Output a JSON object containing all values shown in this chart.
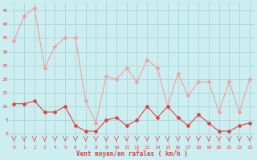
{
  "x": [
    0,
    1,
    2,
    3,
    4,
    5,
    6,
    7,
    8,
    9,
    10,
    11,
    12,
    13,
    14,
    15,
    16,
    17,
    18,
    19,
    20,
    21,
    22,
    23
  ],
  "vent_moyen": [
    11,
    11,
    12,
    8,
    8,
    10,
    3,
    1,
    1,
    5,
    6,
    3,
    5,
    10,
    6,
    10,
    6,
    3,
    7,
    4,
    1,
    1,
    3,
    4
  ],
  "rafales": [
    34,
    43,
    46,
    24,
    32,
    35,
    35,
    12,
    4,
    21,
    20,
    24,
    19,
    27,
    24,
    10,
    22,
    14,
    19,
    19,
    8,
    19,
    8,
    20
  ],
  "bg_color": "#cceef0",
  "grid_color": "#aad4d8",
  "line_color_moyen": "#dd4444",
  "line_color_rafales": "#f0a0a0",
  "xlabel": "Vent moyen/en rafales ( km/h )",
  "ylabel_ticks": [
    0,
    5,
    10,
    15,
    20,
    25,
    30,
    35,
    40,
    45
  ],
  "xlim": [
    -0.5,
    23.5
  ],
  "ylim": [
    -4,
    48
  ]
}
